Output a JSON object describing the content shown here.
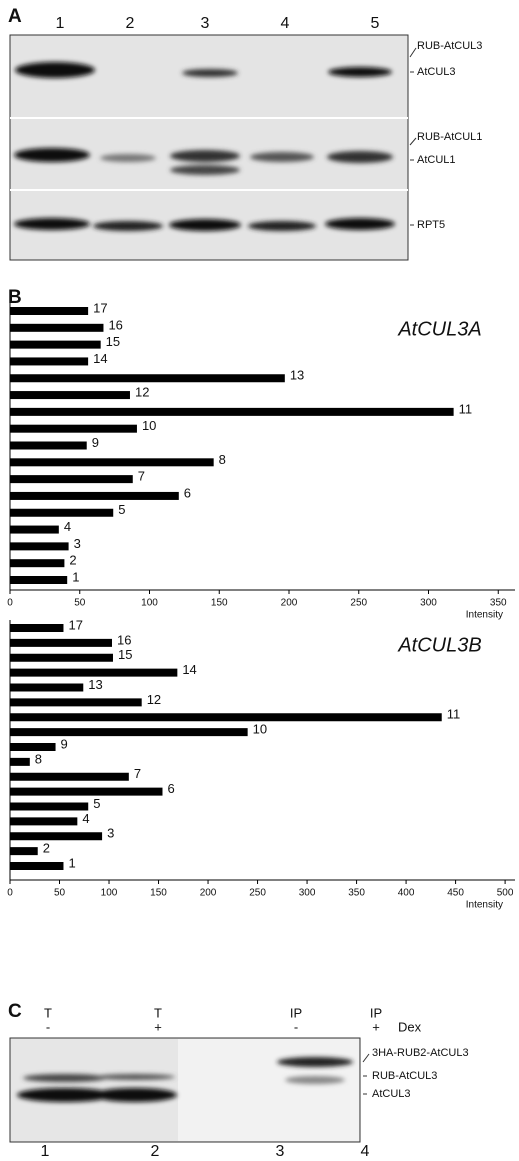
{
  "figure": {
    "panel_a": {
      "label": "A",
      "lanes": [
        "1",
        "2",
        "3",
        "4",
        "5"
      ],
      "band_labels": [
        "RUB-AtCUL3",
        "AtCUL3",
        "RUB-AtCUL1",
        "AtCUL1",
        "RPT5"
      ]
    },
    "panel_c": {
      "label": "C",
      "conditions": [
        {
          "top": "T",
          "bottom": "-"
        },
        {
          "top": "T",
          "bottom": "+"
        },
        {
          "top": "IP",
          "bottom": "-"
        },
        {
          "top": "IP",
          "bottom": "+"
        }
      ],
      "treatment": "Dex",
      "lanes": [
        "1",
        "2",
        "3",
        "4"
      ],
      "band_labels": [
        "3HA-RUB2-AtCUL3",
        "RUB-AtCUL3",
        "AtCUL3"
      ]
    }
  },
  "chart_data": [
    {
      "type": "bar",
      "panel_label": "B",
      "title": "AtCUL3A",
      "x_label": "Intensity",
      "color": "#000000",
      "categories": [
        "1",
        "2",
        "3",
        "4",
        "5",
        "6",
        "7",
        "8",
        "9",
        "10",
        "11",
        "12",
        "13",
        "14",
        "15",
        "16",
        "17"
      ],
      "values": [
        41,
        39,
        42,
        35,
        74,
        121,
        88,
        146,
        55,
        91,
        318,
        86,
        197,
        56,
        65,
        67,
        56
      ],
      "xlim": [
        0,
        362
      ],
      "xticks": [
        0,
        50,
        100,
        150,
        200,
        250,
        300,
        350
      ]
    },
    {
      "type": "bar",
      "title": "AtCUL3B",
      "x_label": "Intensity",
      "color": "#000000",
      "categories": [
        "1",
        "2",
        "3",
        "4",
        "5",
        "6",
        "7",
        "8",
        "9",
        "10",
        "11",
        "12",
        "13",
        "14",
        "15",
        "16",
        "17"
      ],
      "values": [
        54,
        28,
        93,
        68,
        79,
        154,
        120,
        20,
        46,
        240,
        436,
        133,
        74,
        169,
        104,
        103,
        54
      ],
      "xlim": [
        0,
        510
      ],
      "xticks": [
        0,
        50,
        100,
        150,
        200,
        250,
        300,
        350,
        400,
        450,
        500
      ]
    }
  ]
}
